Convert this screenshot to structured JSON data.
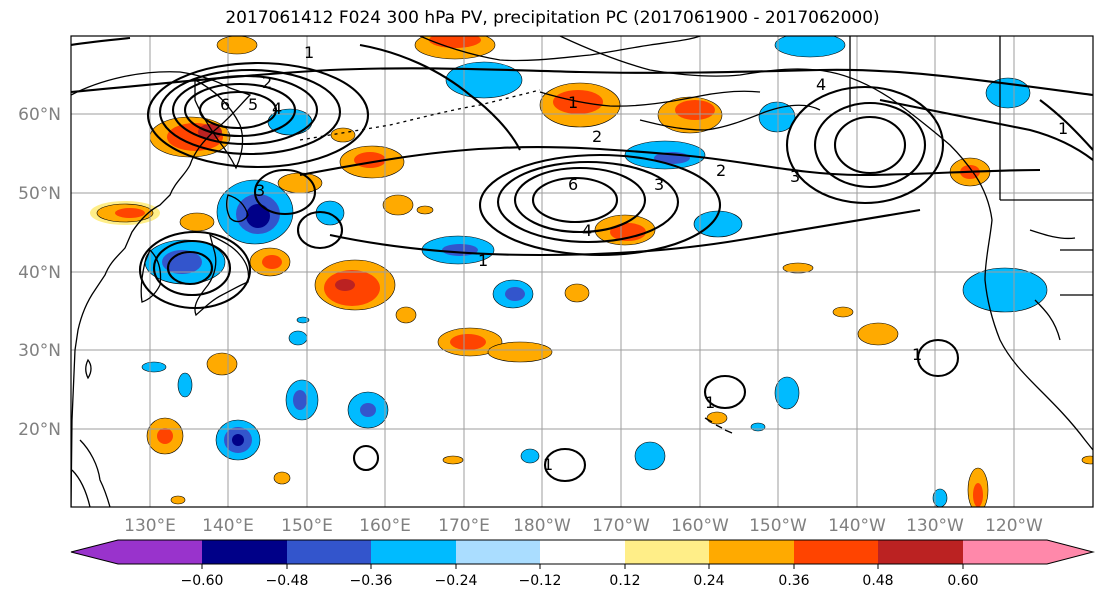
{
  "title": "2017061412 F024 300 hPa PV, precipitation PC (2017061900 - 2017062000)",
  "map": {
    "lat_labels": [
      "60°N",
      "50°N",
      "40°N",
      "30°N",
      "20°N"
    ],
    "lon_labels": [
      "130°E",
      "140°E",
      "150°E",
      "160°E",
      "170°E",
      "180°W",
      "170°W",
      "160°W",
      "150°W",
      "140°W",
      "130°W",
      "120°W"
    ],
    "contour_labels": [
      "1",
      "2",
      "3",
      "4",
      "5",
      "6",
      "1",
      "2",
      "3",
      "4",
      "6",
      "1",
      "2",
      "3",
      "4",
      "1",
      "1",
      "1",
      "1"
    ]
  },
  "colorbar": {
    "tick_labels": [
      "−0.60",
      "−0.48",
      "−0.36",
      "−0.24",
      "−0.12",
      "0.12",
      "0.24",
      "0.36",
      "0.48",
      "0.60"
    ],
    "colors": [
      "#9933cc",
      "#000088",
      "#3355cc",
      "#00bbff",
      "#aaddff",
      "#ffffff",
      "#ffee88",
      "#ffaa00",
      "#ff4400",
      "#bb2222",
      "#ff88aa"
    ]
  }
}
